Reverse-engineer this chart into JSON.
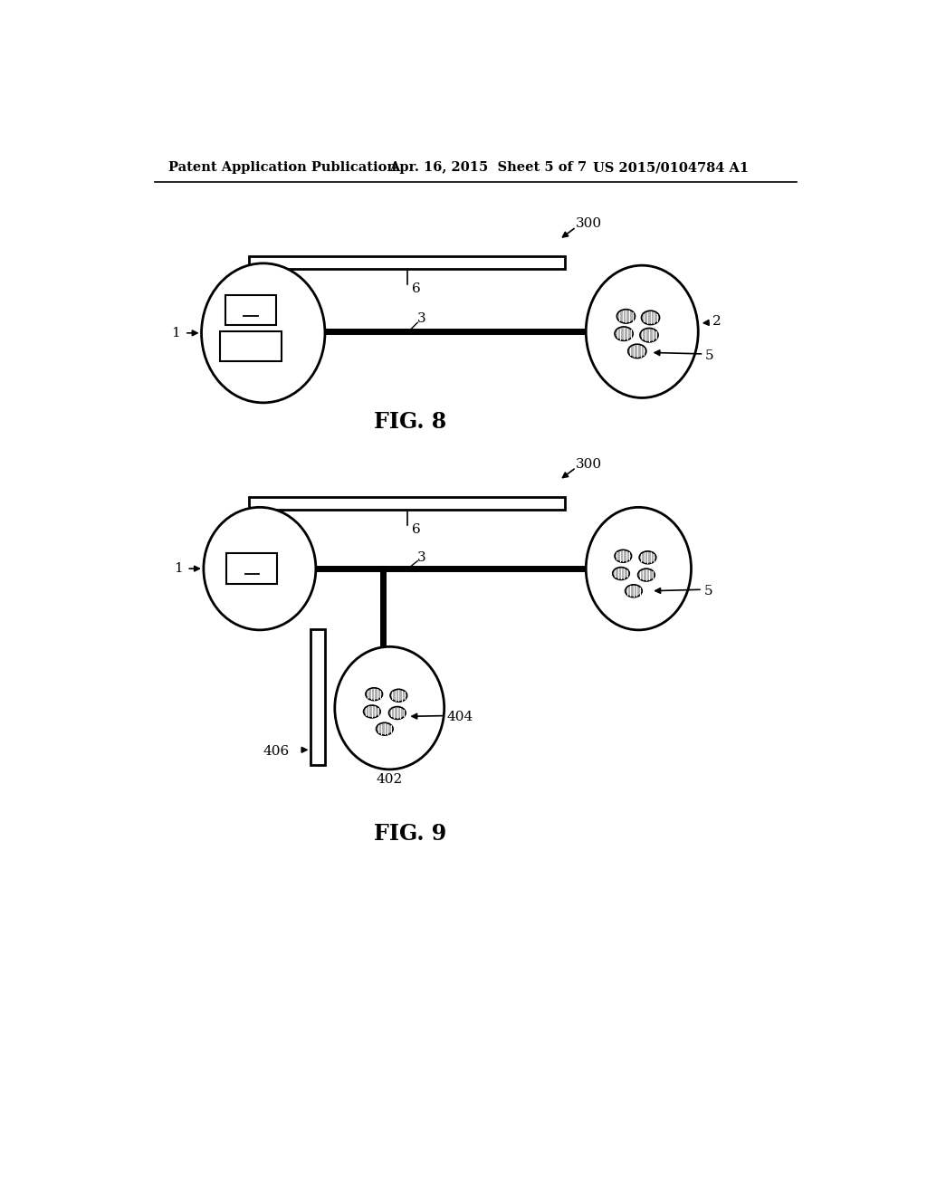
{
  "bg_color": "#ffffff",
  "line_color": "#000000",
  "header_left": "Patent Application Publication",
  "header_mid": "Apr. 16, 2015  Sheet 5 of 7",
  "header_right": "US 2015/0104784 A1"
}
